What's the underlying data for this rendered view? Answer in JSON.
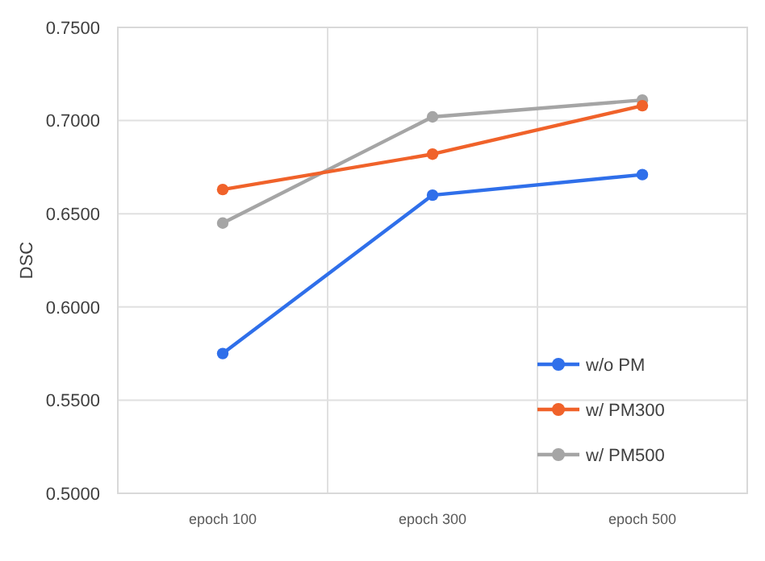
{
  "chart_data": {
    "type": "line",
    "ylabel": "DSC",
    "categories": [
      "epoch 100",
      "epoch 300",
      "epoch 500"
    ],
    "series": [
      {
        "name": "w/o PM",
        "color": "#2f6fea",
        "values": [
          0.575,
          0.66,
          0.671
        ]
      },
      {
        "name": "w/ PM300",
        "color": "#f0622a",
        "values": [
          0.663,
          0.682,
          0.708
        ]
      },
      {
        "name": "w/ PM500",
        "color": "#a5a5a5",
        "values": [
          0.645,
          0.702,
          0.711
        ]
      }
    ],
    "ylim": [
      0.5,
      0.75
    ],
    "yticks": [
      {
        "value": 0.5,
        "label": "0.5000"
      },
      {
        "value": 0.55,
        "label": "0.5500"
      },
      {
        "value": 0.6,
        "label": "0.6000"
      },
      {
        "value": 0.65,
        "label": "0.6500"
      },
      {
        "value": 0.7,
        "label": "0.7000"
      },
      {
        "value": 0.75,
        "label": "0.7500"
      }
    ],
    "grid": true,
    "legend": "bottom right",
    "marker": "circle",
    "line_style": "solid"
  }
}
